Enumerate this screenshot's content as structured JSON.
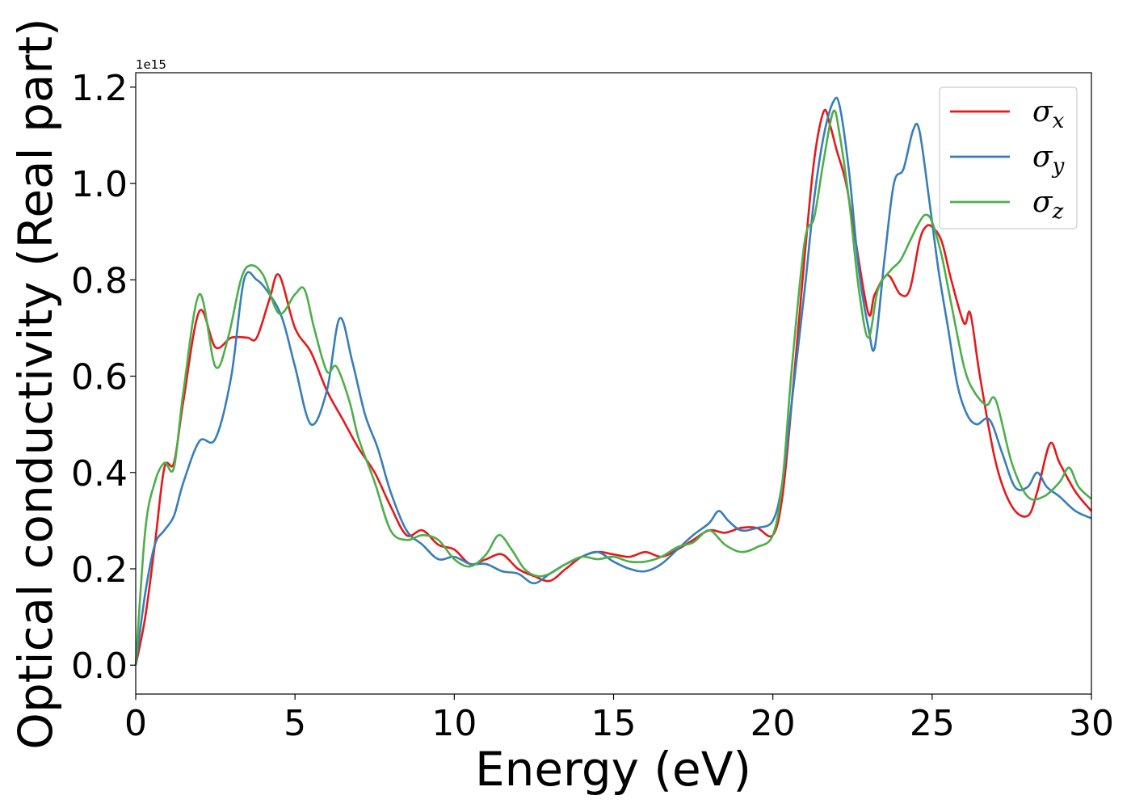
{
  "chart_data": {
    "type": "line",
    "xlabel": "Energy (eV)",
    "ylabel": "Optical conductivity (Real part)",
    "y_offset_label": "1e15",
    "xlim": [
      0,
      30
    ],
    "ylim": [
      -0.06,
      1.23
    ],
    "xticks": [
      0,
      5,
      10,
      15,
      20,
      25,
      30
    ],
    "yticks": [
      0.0,
      0.2,
      0.4,
      0.6,
      0.8,
      1.0,
      1.2
    ],
    "xtick_labels": [
      "0",
      "5",
      "10",
      "15",
      "20",
      "25",
      "30"
    ],
    "ytick_labels": [
      "0.0",
      "0.2",
      "0.4",
      "0.6",
      "0.8",
      "1.0",
      "1.2"
    ],
    "legend_position": "upper right",
    "grid": false,
    "series": [
      {
        "name": "σ",
        "subscript": "x",
        "color": "#e41a1c",
        "x": [
          0,
          0.3,
          0.6,
          0.9,
          1.2,
          1.5,
          2.0,
          2.5,
          3.0,
          3.5,
          3.8,
          4.2,
          4.5,
          5.0,
          5.5,
          6.0,
          6.5,
          7.0,
          7.5,
          8.0,
          8.5,
          9.0,
          9.5,
          10.0,
          10.5,
          11.0,
          11.5,
          12.0,
          12.5,
          13.0,
          13.5,
          14.0,
          14.5,
          15.0,
          15.5,
          16.0,
          16.5,
          17.0,
          17.5,
          18.0,
          18.5,
          19.0,
          19.5,
          20.0,
          20.3,
          20.6,
          21.0,
          21.3,
          21.6,
          21.8,
          22.0,
          22.3,
          22.6,
          23.0,
          23.2,
          23.6,
          24.0,
          24.3,
          24.6,
          24.8,
          25.0,
          25.3,
          25.6,
          26.0,
          26.2,
          26.5,
          27.0,
          27.5,
          28.0,
          28.3,
          28.7,
          29.0,
          29.5,
          30.0
        ],
        "y": [
          0.0,
          0.1,
          0.25,
          0.41,
          0.42,
          0.55,
          0.735,
          0.66,
          0.68,
          0.68,
          0.68,
          0.76,
          0.81,
          0.7,
          0.65,
          0.57,
          0.51,
          0.45,
          0.4,
          0.33,
          0.27,
          0.28,
          0.25,
          0.24,
          0.21,
          0.22,
          0.23,
          0.2,
          0.185,
          0.175,
          0.2,
          0.225,
          0.235,
          0.23,
          0.225,
          0.235,
          0.225,
          0.24,
          0.26,
          0.28,
          0.275,
          0.285,
          0.285,
          0.27,
          0.35,
          0.55,
          0.85,
          1.05,
          1.15,
          1.12,
          1.07,
          1.0,
          0.88,
          0.73,
          0.77,
          0.81,
          0.77,
          0.78,
          0.88,
          0.91,
          0.91,
          0.88,
          0.8,
          0.71,
          0.73,
          0.6,
          0.42,
          0.33,
          0.31,
          0.36,
          0.46,
          0.42,
          0.36,
          0.32
        ]
      },
      {
        "name": "σ",
        "subscript": "y",
        "color": "#377eb8",
        "x": [
          0,
          0.3,
          0.6,
          0.9,
          1.2,
          1.5,
          2.0,
          2.5,
          3.0,
          3.4,
          3.8,
          4.2,
          4.6,
          5.0,
          5.5,
          6.0,
          6.4,
          6.8,
          7.2,
          7.6,
          8.0,
          8.5,
          9.0,
          9.5,
          10.0,
          10.5,
          11.0,
          11.5,
          12.0,
          12.5,
          13.0,
          13.5,
          14.0,
          14.5,
          15.0,
          15.5,
          16.0,
          16.5,
          17.0,
          17.5,
          18.0,
          18.3,
          18.6,
          19.0,
          19.5,
          20.0,
          20.3,
          20.6,
          21.0,
          21.3,
          21.6,
          21.9,
          22.1,
          22.4,
          22.7,
          23.0,
          23.2,
          23.5,
          23.8,
          24.1,
          24.4,
          24.6,
          24.9,
          25.2,
          25.5,
          25.8,
          26.1,
          26.4,
          26.8,
          27.2,
          27.6,
          28.0,
          28.3,
          28.6,
          29.0,
          29.5,
          30.0
        ],
        "y": [
          0.0,
          0.15,
          0.25,
          0.28,
          0.31,
          0.38,
          0.465,
          0.47,
          0.6,
          0.8,
          0.8,
          0.77,
          0.72,
          0.62,
          0.5,
          0.57,
          0.72,
          0.63,
          0.52,
          0.45,
          0.36,
          0.28,
          0.25,
          0.22,
          0.225,
          0.21,
          0.21,
          0.195,
          0.19,
          0.17,
          0.19,
          0.21,
          0.225,
          0.235,
          0.215,
          0.2,
          0.195,
          0.21,
          0.24,
          0.27,
          0.295,
          0.32,
          0.3,
          0.28,
          0.285,
          0.3,
          0.38,
          0.55,
          0.78,
          0.97,
          1.1,
          1.17,
          1.16,
          1.02,
          0.82,
          0.7,
          0.66,
          0.84,
          1.0,
          1.03,
          1.11,
          1.11,
          0.97,
          0.82,
          0.7,
          0.58,
          0.52,
          0.5,
          0.51,
          0.44,
          0.37,
          0.37,
          0.4,
          0.37,
          0.35,
          0.32,
          0.305
        ]
      },
      {
        "name": "σ",
        "subscript": "z",
        "color": "#4daf4a",
        "x": [
          0,
          0.3,
          0.6,
          0.9,
          1.2,
          1.5,
          2.0,
          2.5,
          2.9,
          3.3,
          3.6,
          4.0,
          4.5,
          5.0,
          5.3,
          5.6,
          6.0,
          6.3,
          6.7,
          7.0,
          7.5,
          8.0,
          8.5,
          9.0,
          9.5,
          10.0,
          10.5,
          11.0,
          11.4,
          11.8,
          12.2,
          12.6,
          13.0,
          13.5,
          14.0,
          14.5,
          15.0,
          15.5,
          16.0,
          16.5,
          17.0,
          17.5,
          18.0,
          18.5,
          19.0,
          19.5,
          20.0,
          20.3,
          20.6,
          21.0,
          21.3,
          21.6,
          21.9,
          22.1,
          22.4,
          22.7,
          23.0,
          23.3,
          23.7,
          24.0,
          24.3,
          24.6,
          24.8,
          25.0,
          25.3,
          25.6,
          26.0,
          26.3,
          26.7,
          27.0,
          27.5,
          28.0,
          28.5,
          29.0,
          29.3,
          29.6,
          30.0
        ],
        "y": [
          0.0,
          0.28,
          0.38,
          0.42,
          0.41,
          0.57,
          0.77,
          0.62,
          0.68,
          0.8,
          0.83,
          0.81,
          0.73,
          0.77,
          0.78,
          0.7,
          0.61,
          0.62,
          0.55,
          0.47,
          0.38,
          0.28,
          0.26,
          0.27,
          0.26,
          0.22,
          0.205,
          0.23,
          0.27,
          0.24,
          0.2,
          0.185,
          0.19,
          0.21,
          0.225,
          0.22,
          0.225,
          0.215,
          0.215,
          0.225,
          0.245,
          0.255,
          0.28,
          0.25,
          0.235,
          0.245,
          0.27,
          0.38,
          0.62,
          0.88,
          0.93,
          1.05,
          1.15,
          1.1,
          0.96,
          0.78,
          0.68,
          0.78,
          0.82,
          0.84,
          0.88,
          0.92,
          0.935,
          0.92,
          0.85,
          0.75,
          0.62,
          0.57,
          0.54,
          0.55,
          0.42,
          0.35,
          0.35,
          0.38,
          0.41,
          0.37,
          0.345
        ]
      }
    ]
  }
}
